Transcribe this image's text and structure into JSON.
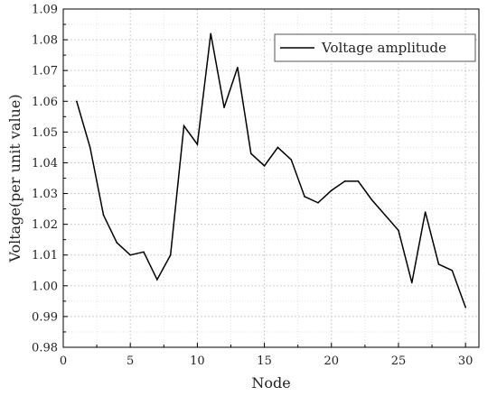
{
  "chart_data": {
    "type": "line",
    "xlabel": "Node",
    "ylabel": "Voltage(per unit value)",
    "xlim": [
      0,
      31
    ],
    "ylim": [
      0.98,
      1.09
    ],
    "x_ticks": [
      0,
      5,
      10,
      15,
      20,
      25,
      30
    ],
    "x_tick_labels": [
      "0",
      "5",
      "10",
      "15",
      "20",
      "25",
      "30"
    ],
    "y_ticks": [
      0.98,
      0.99,
      1.0,
      1.01,
      1.02,
      1.03,
      1.04,
      1.05,
      1.06,
      1.07,
      1.08,
      1.09
    ],
    "y_tick_labels": [
      "0.98",
      "0.99",
      "1.00",
      "1.01",
      "1.02",
      "1.03",
      "1.04",
      "1.05",
      "1.06",
      "1.07",
      "1.08",
      "1.09"
    ],
    "grid": true,
    "legend_position": "top-right",
    "series": [
      {
        "name": "Voltage amplitude",
        "color": "#000000",
        "x": [
          1,
          2,
          3,
          4,
          5,
          6,
          7,
          8,
          9,
          10,
          11,
          12,
          13,
          14,
          15,
          16,
          17,
          18,
          19,
          20,
          21,
          22,
          23,
          24,
          25,
          26,
          27,
          28,
          29,
          30
        ],
        "y": [
          1.06,
          1.045,
          1.023,
          1.014,
          1.01,
          1.011,
          1.002,
          1.01,
          1.052,
          1.046,
          1.082,
          1.058,
          1.071,
          1.043,
          1.039,
          1.045,
          1.041,
          1.029,
          1.027,
          1.031,
          1.034,
          1.034,
          1.028,
          1.023,
          1.018,
          1.001,
          1.024,
          1.007,
          1.005,
          0.993
        ]
      }
    ]
  }
}
